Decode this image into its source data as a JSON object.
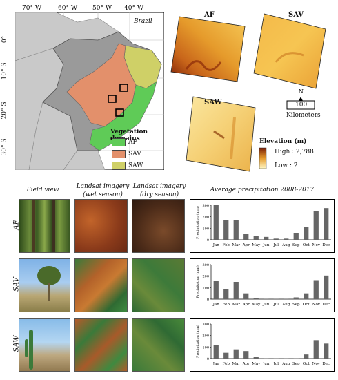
{
  "map": {
    "lon_labels": [
      "70° W",
      "60° W",
      "50° W",
      "40° W"
    ],
    "lat_labels": [
      "0°",
      "10° S",
      "20° S",
      "30° S"
    ],
    "country": "Brazil",
    "legend_title": "Vegetation domains",
    "legend": [
      {
        "label": "AF",
        "color": "#5fcb57"
      },
      {
        "label": "SAV",
        "color": "#e3906b"
      },
      {
        "label": "SAW",
        "color": "#cfd067"
      }
    ]
  },
  "elevation": {
    "panels": [
      "AF",
      "SAV",
      "SAW"
    ],
    "title": "Elevation (m)",
    "high": "High : 2,788",
    "low": "Low : 2",
    "north": "N",
    "scale_value": "100",
    "scale_unit": "Kilometers"
  },
  "headers": {
    "field": "Field view",
    "wet": "Landsat imagery (wet season)",
    "dry": "Landsat imagery (dry season)",
    "precip": "Average precipitation 2008-2017"
  },
  "rows": [
    "AF",
    "SAV",
    "SAW"
  ],
  "chart_data": [
    {
      "type": "bar",
      "title": "AF",
      "categories": [
        "Jan",
        "Feb",
        "Mar",
        "Apr",
        "May",
        "Jun",
        "Jul",
        "Aug",
        "Sep",
        "Oct",
        "Nov",
        "Dec"
      ],
      "values": [
        300,
        170,
        170,
        50,
        30,
        25,
        10,
        10,
        60,
        110,
        250,
        275
      ],
      "ylabel": "Precipitation (mm)",
      "yticks": [
        0,
        100,
        200,
        300
      ],
      "ylim": [
        0,
        300
      ]
    },
    {
      "type": "bar",
      "title": "SAV",
      "categories": [
        "Jan",
        "Feb",
        "Mar",
        "Apr",
        "May",
        "Jun",
        "Jul",
        "Aug",
        "Sep",
        "Oct",
        "Nov",
        "Dec"
      ],
      "values": [
        160,
        90,
        150,
        50,
        10,
        2,
        2,
        2,
        15,
        50,
        165,
        205
      ],
      "ylabel": "Precipitation (mm)",
      "yticks": [
        0,
        100,
        200,
        300
      ],
      "ylim": [
        0,
        300
      ]
    },
    {
      "type": "bar",
      "title": "SAW",
      "categories": [
        "Jan",
        "Feb",
        "Mar",
        "Apr",
        "May",
        "Jun",
        "Jul",
        "Aug",
        "Sep",
        "Oct",
        "Nov",
        "Dec"
      ],
      "values": [
        120,
        50,
        80,
        65,
        15,
        2,
        2,
        2,
        2,
        35,
        160,
        130
      ],
      "ylabel": "Precipitation (mm)",
      "yticks": [
        0,
        100,
        200,
        300
      ],
      "ylim": [
        0,
        300
      ]
    }
  ]
}
